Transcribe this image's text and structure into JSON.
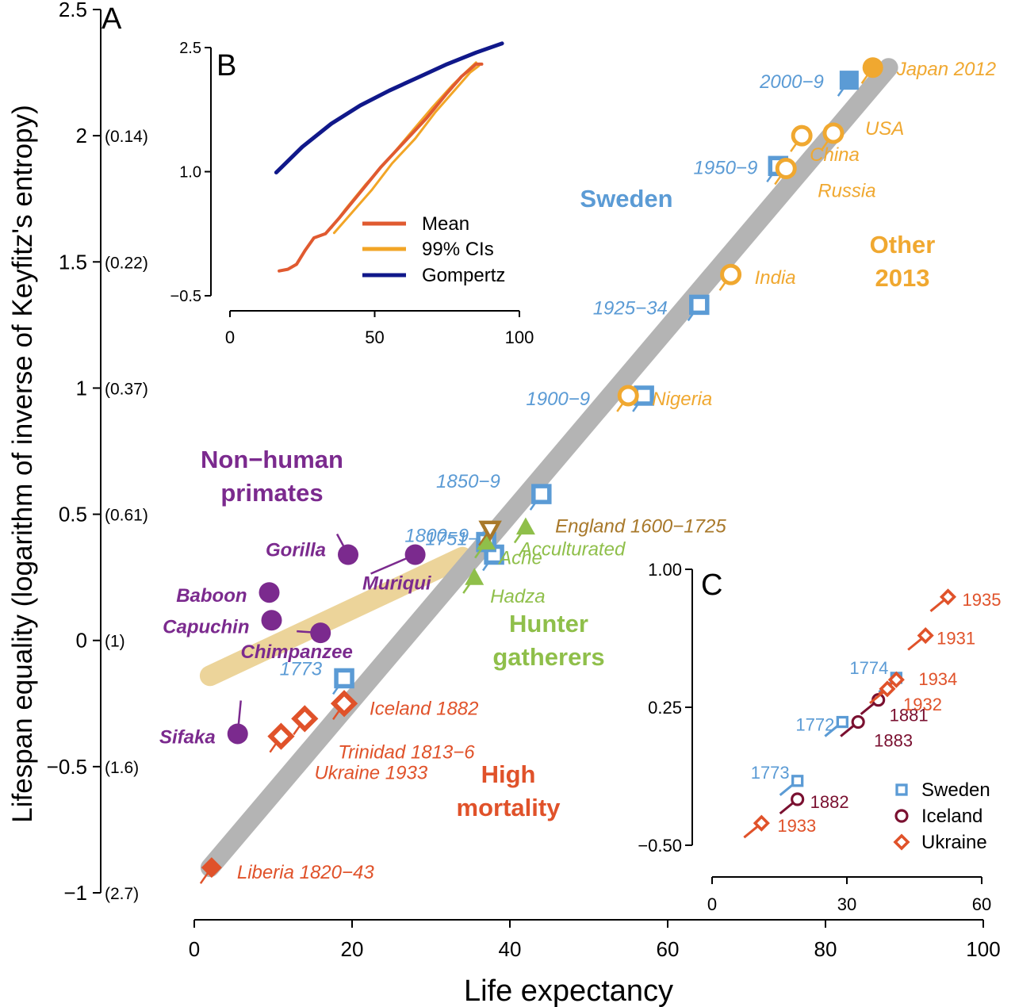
{
  "colors": {
    "sweden": "#5b9bd5",
    "other2013": "#f0a830",
    "primates": "#7b2a8e",
    "hunter": "#8fbf4a",
    "highmort": "#e0522a",
    "england": "#a8782a",
    "iceland": "#7a1030",
    "trend": "#b4b4b4",
    "primate_band": "#ecd49a",
    "gompertz": "#10188a",
    "mean": "#e05a30",
    "ci": "#f2a526",
    "axis": "#000000"
  },
  "chart_data": [
    {
      "panel_label": "A",
      "type": "scatter",
      "xlabel": "Life expectancy",
      "ylabel": "Lifespan equality (logarithm of inverse of Keyfitz's entropy)",
      "xlim": [
        0,
        100
      ],
      "ylim": [
        -1,
        2.5
      ],
      "x_ticks": [
        "0",
        "20",
        "40",
        "60",
        "80",
        "100"
      ],
      "y_ticks": [
        "−1",
        "−0.5",
        "0",
        "0.5",
        "1",
        "1.5",
        "2",
        "2.5"
      ],
      "y_secondary_ticks": [
        "(2.7)",
        "(1.6)",
        "(1)",
        "(0.61)",
        "(0.37)",
        "(0.22)",
        "(0.14)"
      ],
      "group_labels": {
        "sweden": "Sweden",
        "other_2013": [
          "Other",
          "2013"
        ],
        "primates": [
          "Non−human",
          "primates"
        ],
        "hunter": [
          "Hunter",
          "gatherers"
        ],
        "high_mortality": [
          "High",
          "mortality"
        ]
      },
      "trend_line": [
        [
          2,
          -0.9
        ],
        [
          88,
          2.27
        ]
      ],
      "primate_band": [
        [
          2,
          -0.14
        ],
        [
          34,
          0.33
        ]
      ],
      "series": [
        {
          "group": "sweden",
          "points": [
            {
              "label": "1773",
              "x": 19,
              "y": -0.15
            },
            {
              "label": "1751−9",
              "x": 38,
              "y": 0.34
            },
            {
              "label": "1800−9",
              "x": 37,
              "y": 0.39
            },
            {
              "label": "1850−9",
              "x": 44,
              "y": 0.58
            },
            {
              "label": "1900−9",
              "x": 57,
              "y": 0.97
            },
            {
              "label": "1925−34",
              "x": 64,
              "y": 1.33
            },
            {
              "label": "1950−9",
              "x": 74,
              "y": 1.88
            },
            {
              "label": "2000−9",
              "x": 83,
              "y": 2.22
            }
          ]
        },
        {
          "group": "other_2013",
          "points": [
            {
              "label": "Nigeria",
              "x": 55,
              "y": 0.97
            },
            {
              "label": "India",
              "x": 68,
              "y": 1.45
            },
            {
              "label": "Russia",
              "x": 75,
              "y": 1.87
            },
            {
              "label": "China",
              "x": 77,
              "y": 2.0
            },
            {
              "label": "USA",
              "x": 81,
              "y": 2.01
            },
            {
              "label": "Japan 2012",
              "x": 86,
              "y": 2.27
            }
          ]
        },
        {
          "group": "primates",
          "points": [
            {
              "label": "Gorilla",
              "x": 19.5,
              "y": 0.34
            },
            {
              "label": "Muriqui",
              "x": 28,
              "y": 0.34
            },
            {
              "label": "Baboon",
              "x": 9.5,
              "y": 0.19
            },
            {
              "label": "Capuchin",
              "x": 9.8,
              "y": 0.08
            },
            {
              "label": "Chimpanzee",
              "x": 16,
              "y": 0.03
            },
            {
              "label": "Sifaka",
              "x": 5.5,
              "y": -0.37
            }
          ]
        },
        {
          "group": "hunter",
          "points": [
            {
              "label": "Acculturated",
              "x": 42,
              "y": 0.45
            },
            {
              "label": "Ache",
              "x": 37,
              "y": 0.39
            },
            {
              "label": "Hadza",
              "x": 35.5,
              "y": 0.25
            }
          ]
        },
        {
          "group": "england",
          "points": [
            {
              "label": "England 1600−1725",
              "x": 37.5,
              "y": 0.44
            }
          ]
        },
        {
          "group": "high_mortality",
          "points": [
            {
              "label": "Iceland 1882",
              "x": 19,
              "y": -0.25
            },
            {
              "label": "Trinidad 1813−6",
              "x": 14,
              "y": -0.31
            },
            {
              "label": "Ukraine 1933",
              "x": 11,
              "y": -0.38
            },
            {
              "label": "Liberia 1820−43",
              "x": 2.2,
              "y": -0.9
            }
          ]
        }
      ]
    },
    {
      "panel_label": "B",
      "type": "line",
      "xlim": [
        0,
        100
      ],
      "ylim": [
        -0.5,
        2.5
      ],
      "x_ticks": [
        "0",
        "50",
        "100"
      ],
      "y_ticks": [
        "−0.5",
        "1.0",
        "2.5"
      ],
      "series": [
        {
          "name": "Mean",
          "group": "mean",
          "x": [
            17,
            20,
            23,
            26,
            29,
            33,
            38,
            45,
            52,
            60,
            68,
            75,
            80,
            85,
            87
          ],
          "y": [
            -0.2,
            -0.18,
            -0.12,
            0.05,
            0.2,
            0.25,
            0.45,
            0.75,
            1.05,
            1.35,
            1.65,
            1.95,
            2.15,
            2.3,
            2.3
          ]
        },
        {
          "name": "99% CIs",
          "group": "ci_upper",
          "x": [
            35,
            40,
            47,
            54,
            62,
            70,
            77,
            82,
            85
          ],
          "y": [
            0.32,
            0.55,
            0.85,
            1.12,
            1.45,
            1.78,
            2.05,
            2.22,
            2.32
          ]
        },
        {
          "name": "",
          "group": "ci_lower",
          "x": [
            36,
            42,
            49,
            56,
            64,
            71,
            78,
            83,
            86
          ],
          "y": [
            0.26,
            0.5,
            0.78,
            1.1,
            1.4,
            1.72,
            2.0,
            2.2,
            2.28
          ]
        },
        {
          "name": "Gompertz",
          "group": "gompertz",
          "x": [
            16,
            25,
            35,
            45,
            55,
            65,
            75,
            85,
            94
          ],
          "y": [
            0.99,
            1.3,
            1.58,
            1.8,
            1.98,
            2.14,
            2.3,
            2.44,
            2.55
          ]
        }
      ]
    },
    {
      "panel_label": "C",
      "type": "scatter",
      "xlim": [
        0,
        60
      ],
      "ylim": [
        -0.5,
        1.0
      ],
      "x_ticks": [
        "0",
        "30",
        "60"
      ],
      "y_ticks": [
        "−0.50",
        "0.25",
        "1.00"
      ],
      "series": [
        {
          "name": "Sweden",
          "group": "sweden",
          "points": [
            {
              "label": "1774",
              "x": 41,
              "y": 0.41
            },
            {
              "label": "1772",
              "x": 29,
              "y": 0.17
            },
            {
              "label": "1773",
              "x": 19,
              "y": -0.15
            }
          ]
        },
        {
          "name": "Iceland",
          "group": "iceland",
          "points": [
            {
              "label": "1881",
              "x": 37,
              "y": 0.29
            },
            {
              "label": "1883",
              "x": 32.5,
              "y": 0.17
            },
            {
              "label": "1882",
              "x": 19,
              "y": -0.25
            }
          ]
        },
        {
          "name": "Ukraine",
          "group": "ukraine",
          "points": [
            {
              "label": "1935",
              "x": 52.5,
              "y": 0.85
            },
            {
              "label": "1931",
              "x": 47.5,
              "y": 0.64
            },
            {
              "label": "1934",
              "x": 41,
              "y": 0.4
            },
            {
              "label": "1932",
              "x": 39,
              "y": 0.35
            },
            {
              "label": "1933",
              "x": 11,
              "y": -0.38
            }
          ]
        }
      ]
    }
  ]
}
